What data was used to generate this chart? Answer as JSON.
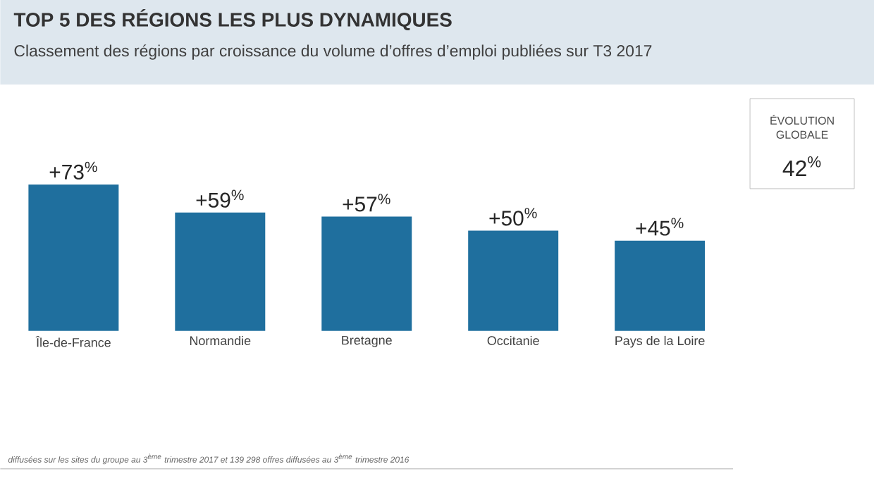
{
  "chart_data": {
    "type": "bar",
    "title": "TOP 5 DES RÉGIONS LES PLUS DYNAMIQUES",
    "subtitle": "Classement des régions par croissance du volume d’offres d’emploi publiées sur T3 2017",
    "categories": [
      "Île-de-France",
      "Normandie",
      "Bretagne",
      "Occitanie",
      "Pays de la Loire"
    ],
    "values": [
      73,
      59,
      57,
      50,
      45
    ],
    "value_labels": [
      "+73$^{%}$",
      "+59$^{%}$",
      "+57$^{%}$",
      "+50$^{%}$",
      "+45$^{%}$"
    ],
    "color": "#1f6f9e",
    "annotations": [
      "ÉVOLUTION GLOBALE",
      "42$^{%}$",
      "diffusées sur les sites du groupe au 3$^{ème}$ trimestre 2017 et 139 298 offres diffusées au 3$^{ème}$ trimestre 2016"
    ]
  }
}
